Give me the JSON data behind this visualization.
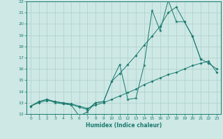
{
  "xlabel": "Humidex (Indice chaleur)",
  "x": [
    0,
    1,
    2,
    3,
    4,
    5,
    6,
    7,
    8,
    9,
    10,
    11,
    12,
    13,
    14,
    15,
    16,
    17,
    18,
    19,
    20,
    21,
    22,
    23
  ],
  "line1": [
    12.7,
    13.1,
    13.3,
    13.0,
    12.9,
    12.8,
    11.8,
    12.2,
    13.0,
    13.1,
    14.9,
    16.4,
    13.3,
    13.4,
    16.3,
    21.2,
    19.4,
    22.1,
    20.2,
    20.2,
    18.9,
    16.9,
    null,
    null
  ],
  "line2": [
    12.7,
    13.1,
    13.3,
    13.1,
    12.95,
    12.85,
    12.6,
    12.4,
    13.0,
    13.1,
    14.9,
    15.6,
    16.4,
    17.2,
    18.1,
    18.9,
    19.8,
    21.0,
    21.5,
    20.2,
    18.9,
    16.9,
    16.5,
    16.0
  ],
  "line3": [
    12.7,
    13.0,
    13.2,
    13.1,
    13.0,
    12.9,
    12.7,
    12.5,
    12.8,
    13.0,
    13.3,
    13.6,
    13.9,
    14.2,
    14.6,
    14.9,
    15.2,
    15.5,
    15.7,
    16.0,
    16.3,
    16.5,
    16.7,
    15.7
  ],
  "ylim": [
    12,
    22
  ],
  "xlim": [
    -0.5,
    23.5
  ],
  "yticks": [
    12,
    13,
    14,
    15,
    16,
    17,
    18,
    19,
    20,
    21,
    22
  ],
  "xticks": [
    0,
    1,
    2,
    3,
    4,
    5,
    6,
    7,
    8,
    9,
    10,
    11,
    12,
    13,
    14,
    15,
    16,
    17,
    18,
    19,
    20,
    21,
    22,
    23
  ],
  "line_color": "#1a7a6e",
  "bg_color": "#cde8e5",
  "grid_color": "#aecfcc"
}
